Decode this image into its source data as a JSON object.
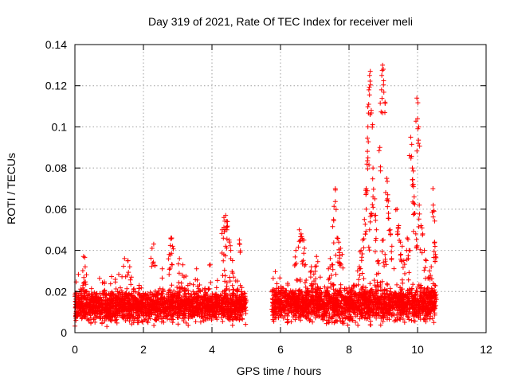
{
  "chart_data": {
    "type": "scatter",
    "title": "Day 319 of 2021, Rate Of TEC Index for receiver meli",
    "xlabel": "GPS time / hours",
    "ylabel": "ROTI / TECUs",
    "xlim": [
      0,
      12
    ],
    "ylim": [
      0,
      0.14
    ],
    "xticks": [
      0,
      2,
      4,
      6,
      8,
      10,
      12
    ],
    "xtick_labels": [
      "0",
      "2",
      "4",
      "6",
      "8",
      "10",
      "12"
    ],
    "yticks": [
      0,
      0.02,
      0.04,
      0.06,
      0.08,
      0.1,
      0.12,
      0.14
    ],
    "ytick_labels": [
      "0",
      "0.02",
      "0.04",
      "0.06",
      "0.08",
      "0.1",
      "0.12",
      "0.14"
    ],
    "grid": true,
    "marker": "+",
    "series": [
      {
        "name": "ROTI",
        "color": "#ff0000",
        "segments": [
          {
            "x_start": 0.0,
            "x_end": 5.0,
            "baseline": 0.013,
            "spread": 0.011
          },
          {
            "x_start": 5.75,
            "x_end": 10.55,
            "baseline": 0.014,
            "spread": 0.012
          }
        ],
        "peaks": [
          [
            0.25,
            0.037
          ],
          [
            0.3,
            0.032
          ],
          [
            1.45,
            0.036
          ],
          [
            1.55,
            0.035
          ],
          [
            1.6,
            0.032
          ],
          [
            2.3,
            0.043
          ],
          [
            2.25,
            0.041
          ],
          [
            2.55,
            0.031
          ],
          [
            2.8,
            0.046
          ],
          [
            2.85,
            0.042
          ],
          [
            2.75,
            0.038
          ],
          [
            3.05,
            0.036
          ],
          [
            3.15,
            0.033
          ],
          [
            3.55,
            0.031
          ],
          [
            3.95,
            0.033
          ],
          [
            4.35,
            0.056
          ],
          [
            4.4,
            0.057
          ],
          [
            4.45,
            0.054
          ],
          [
            4.3,
            0.05
          ],
          [
            4.5,
            0.045
          ],
          [
            4.4,
            0.042
          ],
          [
            4.35,
            0.038
          ],
          [
            4.55,
            0.04
          ],
          [
            4.6,
            0.035
          ],
          [
            4.8,
            0.045
          ],
          [
            6.45,
            0.04
          ],
          [
            6.55,
            0.05
          ],
          [
            6.6,
            0.048
          ],
          [
            6.65,
            0.045
          ],
          [
            6.7,
            0.041
          ],
          [
            7.05,
            0.037
          ],
          [
            7.45,
            0.036
          ],
          [
            7.55,
            0.055
          ],
          [
            7.6,
            0.07
          ],
          [
            7.65,
            0.046
          ],
          [
            7.7,
            0.044
          ],
          [
            7.75,
            0.041
          ],
          [
            7.8,
            0.038
          ],
          [
            7.5,
            0.033
          ],
          [
            7.4,
            0.031
          ],
          [
            8.35,
            0.04
          ],
          [
            8.4,
            0.045
          ],
          [
            8.45,
            0.055
          ],
          [
            8.5,
            0.06
          ],
          [
            8.5,
            0.07
          ],
          [
            8.55,
            0.085
          ],
          [
            8.55,
            0.1
          ],
          [
            8.58,
            0.118
          ],
          [
            8.6,
            0.125
          ],
          [
            8.62,
            0.127
          ],
          [
            8.65,
            0.108
          ],
          [
            8.7,
            0.08
          ],
          [
            8.75,
            0.065
          ],
          [
            8.8,
            0.05
          ],
          [
            8.6,
            0.05
          ],
          [
            8.65,
            0.058
          ],
          [
            8.7,
            0.066
          ],
          [
            8.9,
            0.09
          ],
          [
            8.95,
            0.118
          ],
          [
            8.98,
            0.13
          ],
          [
            9.0,
            0.128
          ],
          [
            9.05,
            0.112
          ],
          [
            9.1,
            0.075
          ],
          [
            9.12,
            0.065
          ],
          [
            9.15,
            0.058
          ],
          [
            9.2,
            0.05
          ],
          [
            9.25,
            0.042
          ],
          [
            9.0,
            0.045
          ],
          [
            9.05,
            0.038
          ],
          [
            9.4,
            0.06
          ],
          [
            9.45,
            0.052
          ],
          [
            9.5,
            0.044
          ],
          [
            9.55,
            0.042
          ],
          [
            9.6,
            0.035
          ],
          [
            9.8,
            0.095
          ],
          [
            9.85,
            0.08
          ],
          [
            9.88,
            0.072
          ],
          [
            9.9,
            0.066
          ],
          [
            9.92,
            0.058
          ],
          [
            9.95,
            0.048
          ],
          [
            9.98,
            0.114
          ],
          [
            10.0,
            0.104
          ],
          [
            10.02,
            0.092
          ],
          [
            10.05,
            0.062
          ],
          [
            10.1,
            0.052
          ],
          [
            10.15,
            0.048
          ],
          [
            10.2,
            0.04
          ],
          [
            10.25,
            0.035
          ],
          [
            10.45,
            0.07
          ],
          [
            10.48,
            0.059
          ],
          [
            10.5,
            0.044
          ],
          [
            10.52,
            0.038
          ],
          [
            10.4,
            0.032
          ],
          [
            10.35,
            0.03
          ],
          [
            9.7,
            0.046
          ],
          [
            9.75,
            0.04
          ],
          [
            8.85,
            0.035
          ],
          [
            8.3,
            0.032
          ],
          [
            8.25,
            0.03
          ],
          [
            6.9,
            0.032
          ]
        ]
      }
    ]
  }
}
